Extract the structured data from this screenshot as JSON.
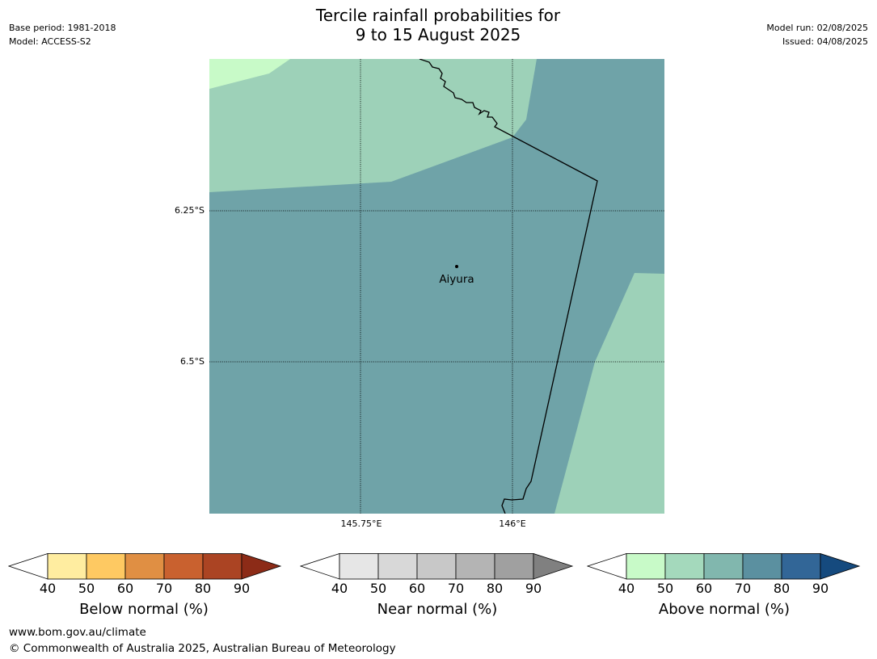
{
  "title": {
    "line1": "Tercile rainfall probabilities for",
    "line2": "9 to 15 August 2025"
  },
  "meta_left": {
    "base_period": "Base period: 1981-2018",
    "model": "Model: ACCESS-S2"
  },
  "meta_right": {
    "model_run": "Model run: 02/08/2025",
    "issued": "Issued: 04/08/2025"
  },
  "map": {
    "latitude_labels": [
      "6.25°S",
      "6.5°S"
    ],
    "longitude_labels": [
      "145.75°E",
      "146°E"
    ],
    "place": "Aiyura",
    "colors": {
      "above_40_50": "#c8fac8",
      "above_50_60": "#9dd1b8",
      "above_60_70": "#6fa3a8",
      "border": "#000000",
      "gridline": "#000000"
    }
  },
  "colorbars": [
    {
      "label": "Below normal (%)",
      "ticks": [
        "40",
        "50",
        "60",
        "70",
        "80",
        "90"
      ],
      "colors": [
        "#ffeda0",
        "#fec962",
        "#e08f43",
        "#c9612f",
        "#ab4423",
        "#8c2b17"
      ]
    },
    {
      "label": "Near normal (%)",
      "ticks": [
        "40",
        "50",
        "60",
        "70",
        "80",
        "90"
      ],
      "colors": [
        "#e6e6e6",
        "#d8d8d8",
        "#c8c8c8",
        "#b4b4b4",
        "#a0a0a0",
        "#808080"
      ]
    },
    {
      "label": "Above normal (%)",
      "ticks": [
        "40",
        "50",
        "60",
        "70",
        "80",
        "90"
      ],
      "colors": [
        "#c8fac8",
        "#a4d9bc",
        "#81b7ae",
        "#5b90a0",
        "#326697",
        "#154a7e"
      ]
    }
  ],
  "footer": {
    "website": "www.bom.gov.au/climate",
    "copyright": "© Commonwealth of Australia 2025, Australian Bureau of Meteorology"
  }
}
